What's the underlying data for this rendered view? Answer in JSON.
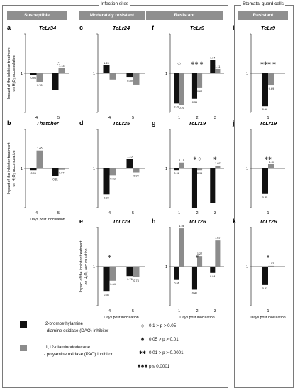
{
  "frames": {
    "infection_title": "Infection sites",
    "guard_title": "Stomatal guard cells"
  },
  "bands": {
    "susceptible": "Susceptible",
    "moderately_resistant": "Moderately resistant",
    "resistant": "Resistant",
    "guard_resistant": "Resistant"
  },
  "ylabel_line1": "Impact of the inhibitor treatment",
  "ylabel_line2": "on H₂O₂ accumulation",
  "xlabel": "Days post inoculation",
  "legend": {
    "dao_name": "2-bromoethylamine",
    "dao_desc": "- diamine oxidase (DAO) inhibitor",
    "pao_name": "1,12-diaminododecane",
    "pao_desc": "- polyamine oxidase (PAO) inhibitor",
    "dao_color": "#111111",
    "pao_color": "#8c8c8c"
  },
  "significance": [
    {
      "symbol": "◇",
      "text": "0.1 > p > 0.05"
    },
    {
      "symbol": "✱",
      "text": "0.05 > p > 0.01"
    },
    {
      "symbol": "✱✱",
      "text": "0.01 > p > 0.0001"
    },
    {
      "symbol": "✱✱✱",
      "text": "p ≤ 0.0001"
    }
  ],
  "chart_data": [
    {
      "letter": "a",
      "title": "TcLr34",
      "type": "bar",
      "ylim": [
        0,
        2
      ],
      "categories": [
        "4",
        "5"
      ],
      "series": [
        {
          "values": [
            0.96,
            0.58
          ],
          "labels": [
            "0.96",
            ""
          ]
        },
        {
          "values": [
            0.78,
            1.13
          ],
          "labels": [
            "0.78",
            "1.13"
          ]
        }
      ],
      "marks": [
        {
          "cat": 1,
          "sym": "◇"
        }
      ]
    },
    {
      "letter": "b",
      "title": "Thatcher",
      "type": "bar",
      "ylim": [
        0,
        2
      ],
      "categories": [
        "4",
        "5"
      ],
      "series": [
        {
          "values": [
            0.96,
            0.81
          ],
          "labels": [
            "0.96",
            "0.81"
          ]
        },
        {
          "values": [
            1.46,
            0.97
          ],
          "labels": [
            "1.46",
            "0.97"
          ]
        }
      ],
      "marks": []
    },
    {
      "letter": "c",
      "title": "TcLr24",
      "type": "bar",
      "ylim": [
        0,
        2
      ],
      "categories": [
        "4",
        "5"
      ],
      "series": [
        {
          "values": [
            1.2,
            0.89
          ],
          "labels": [
            "1.20",
            "0.89"
          ]
        },
        {
          "values": [
            0.84,
            0.71
          ],
          "labels": [
            "",
            ""
          ]
        }
      ],
      "marks": []
    },
    {
      "letter": "d",
      "title": "TcLr25",
      "type": "bar",
      "ylim": [
        0,
        2
      ],
      "categories": [
        "4",
        "5"
      ],
      "series": [
        {
          "values": [
            0.34,
            1.25
          ],
          "labels": [
            "0.34",
            "1.25"
          ]
        },
        {
          "values": [
            0.83,
            0.9
          ],
          "labels": [
            "0.83",
            "0.90"
          ]
        }
      ],
      "marks": []
    },
    {
      "letter": "e",
      "title": "TcLr29",
      "type": "bar",
      "ylim": [
        0,
        2
      ],
      "categories": [
        "4",
        "5"
      ],
      "series": [
        {
          "values": [
            0.36,
            0.76
          ],
          "labels": [
            "0.36",
            "0.76"
          ]
        },
        {
          "values": [
            0.64,
            0.73
          ],
          "labels": [
            "0.64",
            "0.73"
          ]
        }
      ],
      "marks": [
        {
          "cat": 0,
          "sym": "✱"
        }
      ]
    },
    {
      "letter": "f",
      "title": "TcLr9",
      "type": "bar",
      "ylim": [
        0,
        2
      ],
      "categories": [
        "1",
        "2",
        "3"
      ],
      "series": [
        {
          "values": [
            0.23,
            0.35,
            1.34
          ],
          "labels": [
            "0.23",
            "0.35",
            "1.34"
          ]
        },
        {
          "values": [
            0.2,
            0.62,
            1.11
          ],
          "labels": [
            "0.20",
            "0.62",
            "1.11"
          ]
        }
      ],
      "marks": [
        {
          "cat": 0,
          "sym": "◇"
        },
        {
          "cat": 1,
          "sym": "✱✱ ✱"
        }
      ]
    },
    {
      "letter": "g",
      "title": "TcLr19",
      "type": "bar",
      "ylim": [
        0,
        2
      ],
      "categories": [
        "1",
        "2",
        "3"
      ],
      "series": [
        {
          "values": [
            0.96,
            0.0,
            0.11
          ],
          "labels": [
            "0.96",
            "",
            ""
          ]
        },
        {
          "values": [
            1.15,
            0.96,
            1.07
          ],
          "labels": [
            "1.15",
            "0.96",
            "1.07"
          ]
        }
      ],
      "marks": [
        {
          "cat": 1,
          "sym": "✱ ◇"
        },
        {
          "cat": 2,
          "sym": "✱"
        }
      ]
    },
    {
      "letter": "h",
      "title": "TcLr26",
      "type": "bar",
      "ylim": [
        0,
        2
      ],
      "categories": [
        "1",
        "2",
        "3"
      ],
      "series": [
        {
          "values": [
            0.66,
            0.41,
            0.84
          ],
          "labels": [
            "0.66",
            "0.41",
            "0.84"
          ]
        },
        {
          "values": [
            1.98,
            1.27,
            1.67
          ],
          "labels": [
            "1.98",
            "1.27",
            "1.67"
          ]
        }
      ],
      "marks": [
        {
          "cat": 1,
          "sym": "✱"
        }
      ]
    },
    {
      "letter": "i",
      "title": "TcLr9",
      "type": "bar",
      "ylim": [
        0,
        2
      ],
      "categories": [
        "1"
      ],
      "series": [
        {
          "values": [
            0.16
          ],
          "labels": [
            "0.16"
          ]
        },
        {
          "values": [
            0.69
          ],
          "labels": [
            "0.69"
          ]
        }
      ],
      "marks": [
        {
          "cat": 0,
          "sym": "✱✱✱ ✱"
        }
      ]
    },
    {
      "letter": "j",
      "title": "TcLr19",
      "type": "bar",
      "ylim": [
        0,
        2
      ],
      "categories": [
        "1"
      ],
      "series": [
        {
          "values": [
            0.35
          ],
          "labels": [
            "0.35"
          ]
        },
        {
          "values": [
            1.11
          ],
          "labels": [
            "1.11"
          ]
        }
      ],
      "marks": [
        {
          "cat": 0,
          "sym": "✱✱"
        }
      ]
    },
    {
      "letter": "k",
      "title": "TcLr26",
      "type": "bar",
      "ylim": [
        0,
        2
      ],
      "categories": [
        "1"
      ],
      "series": [
        {
          "values": [
            0.53
          ],
          "labels": [
            "0.53"
          ]
        },
        {
          "values": [
            1.02
          ],
          "labels": [
            "1.02"
          ]
        }
      ],
      "marks": [
        {
          "cat": 0,
          "sym": "✱"
        }
      ]
    }
  ]
}
